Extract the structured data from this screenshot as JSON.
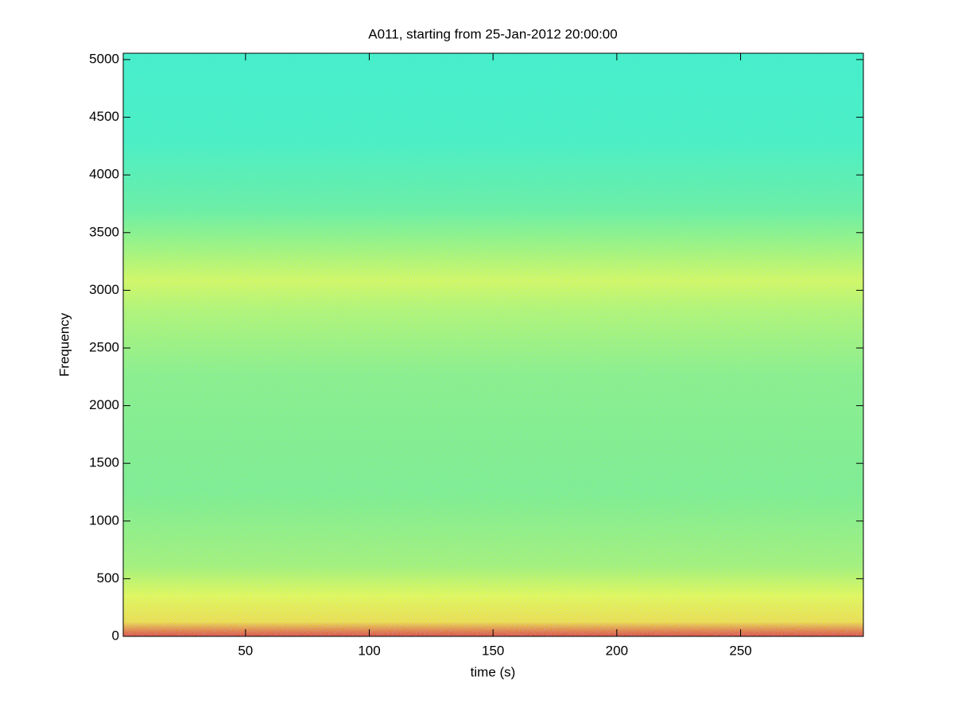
{
  "chart_data": {
    "type": "spectrogram",
    "title": "A011, starting from 25-Jan-2012 20:00:00",
    "x_label": "time (s)",
    "y_label": "Frequency",
    "xlim": [
      0.6,
      299.6
    ],
    "xticks": [
      50,
      100,
      150,
      200,
      250
    ],
    "ylim": [
      0,
      5055
    ],
    "yticks": [
      0,
      500,
      1000,
      1500,
      2000,
      2500,
      3000,
      3500,
      4000,
      4500,
      5000
    ]
  }
}
